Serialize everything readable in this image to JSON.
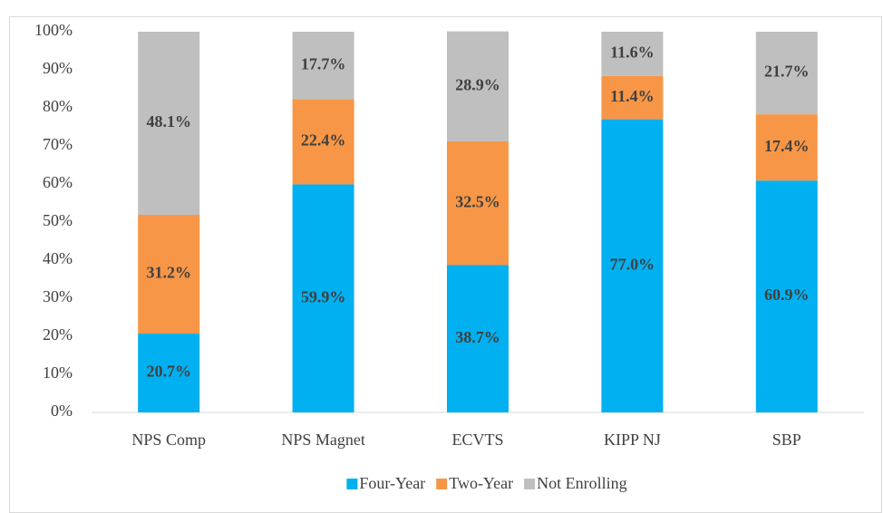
{
  "chart_data": {
    "type": "stacked_bar",
    "categories": [
      "NPS Comp",
      "NPS Magnet",
      "ECVTS",
      "KIPP NJ",
      "SBP"
    ],
    "series": [
      {
        "name": "Four-Year",
        "color": "#00b0f0",
        "values": [
          20.7,
          59.9,
          38.7,
          77.0,
          60.9
        ],
        "value_labels": [
          "20.7%",
          "59.9%",
          "38.7%",
          "77.0%",
          "60.9%"
        ]
      },
      {
        "name": "Two-Year",
        "color": "#f79646",
        "values": [
          31.2,
          22.4,
          32.5,
          11.4,
          17.4
        ],
        "value_labels": [
          "31.2%",
          "22.4%",
          "32.5%",
          "11.4%",
          "17.4%"
        ]
      },
      {
        "name": "Not Enrolling",
        "color": "#bfbfbf",
        "values": [
          48.1,
          17.7,
          28.9,
          11.6,
          21.7
        ],
        "value_labels": [
          "48.1%",
          "17.7%",
          "28.9%",
          "11.6%",
          "21.7%"
        ]
      }
    ],
    "ylim": [
      0,
      100
    ],
    "yticks": [
      {
        "value": 0,
        "label": "0%"
      },
      {
        "value": 10,
        "label": "10%"
      },
      {
        "value": 20,
        "label": "20%"
      },
      {
        "value": 30,
        "label": "30%"
      },
      {
        "value": 40,
        "label": "40%"
      },
      {
        "value": 50,
        "label": "50%"
      },
      {
        "value": 60,
        "label": "60%"
      },
      {
        "value": 70,
        "label": "70%"
      },
      {
        "value": 80,
        "label": "80%"
      },
      {
        "value": 90,
        "label": "90%"
      },
      {
        "value": 100,
        "label": "100%"
      }
    ],
    "legend": "bottom"
  }
}
